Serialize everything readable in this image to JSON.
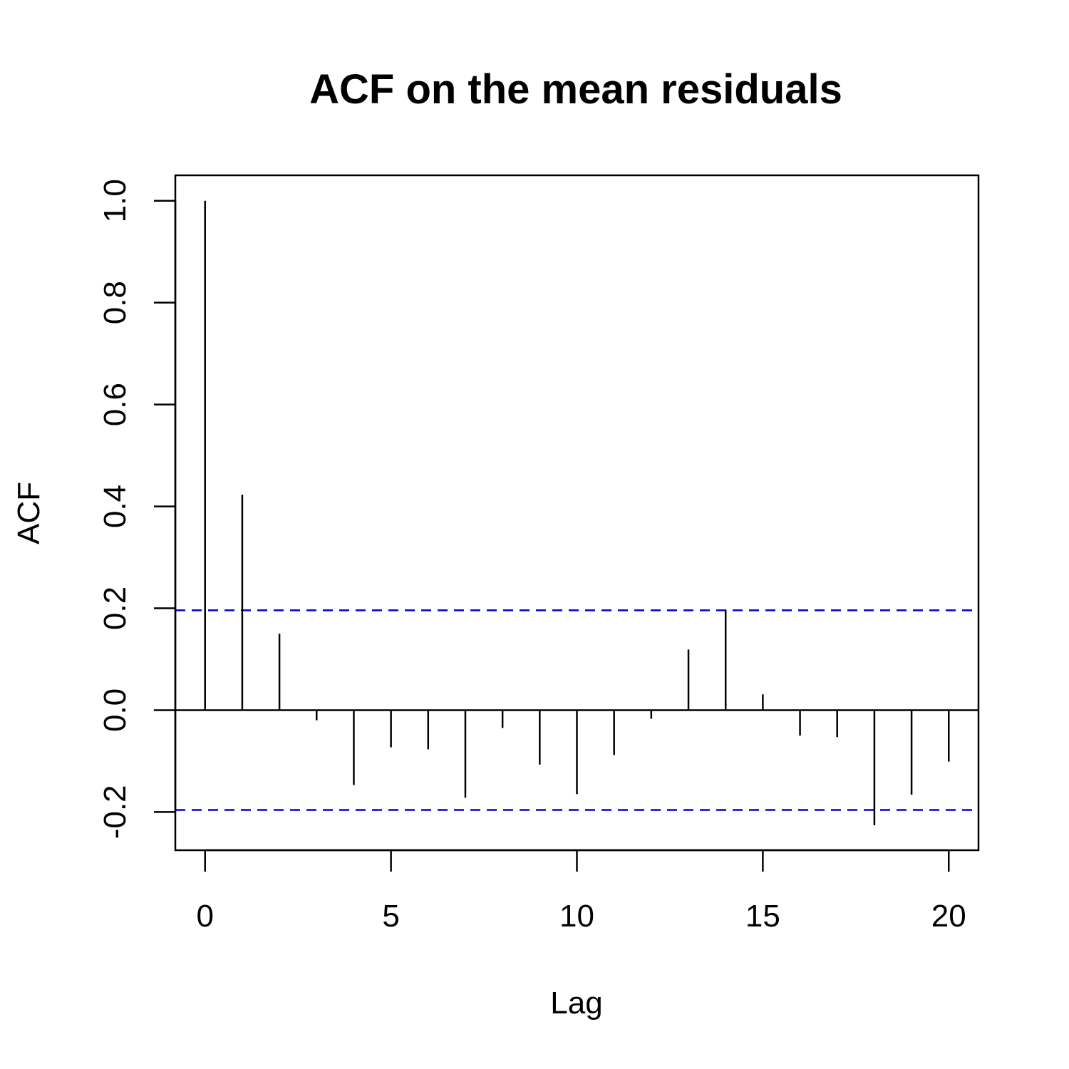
{
  "chart_data": {
    "type": "bar",
    "title": "ACF on the mean residuals",
    "xlabel": "Lag",
    "ylabel": "ACF",
    "x": [
      0,
      1,
      2,
      3,
      4,
      5,
      6,
      7,
      8,
      9,
      10,
      11,
      12,
      13,
      14,
      15,
      16,
      17,
      18,
      19,
      20
    ],
    "values": [
      1.0,
      0.423,
      0.15,
      -0.02,
      -0.147,
      -0.073,
      -0.077,
      -0.172,
      -0.035,
      -0.107,
      -0.165,
      -0.088,
      -0.017,
      0.119,
      0.197,
      0.031,
      -0.05,
      -0.053,
      -0.226,
      -0.166,
      -0.101
    ],
    "confidence_bounds": [
      0.196,
      -0.196
    ],
    "xlim": [
      -0.8,
      20.8
    ],
    "ylim": [
      -0.275,
      1.05
    ],
    "x_ticks": [
      0,
      5,
      10,
      15,
      20
    ],
    "x_tick_labels": [
      "0",
      "5",
      "10",
      "15",
      "20"
    ],
    "y_ticks": [
      -0.2,
      0.0,
      0.2,
      0.4,
      0.6,
      0.8,
      1.0
    ],
    "y_tick_labels": [
      "-0.2",
      "0.0",
      "0.2",
      "0.4",
      "0.6",
      "0.8",
      "1.0"
    ],
    "grid": false,
    "colors": {
      "bars": "#000000",
      "bounds": "#0000cc",
      "axes": "#000000"
    }
  }
}
